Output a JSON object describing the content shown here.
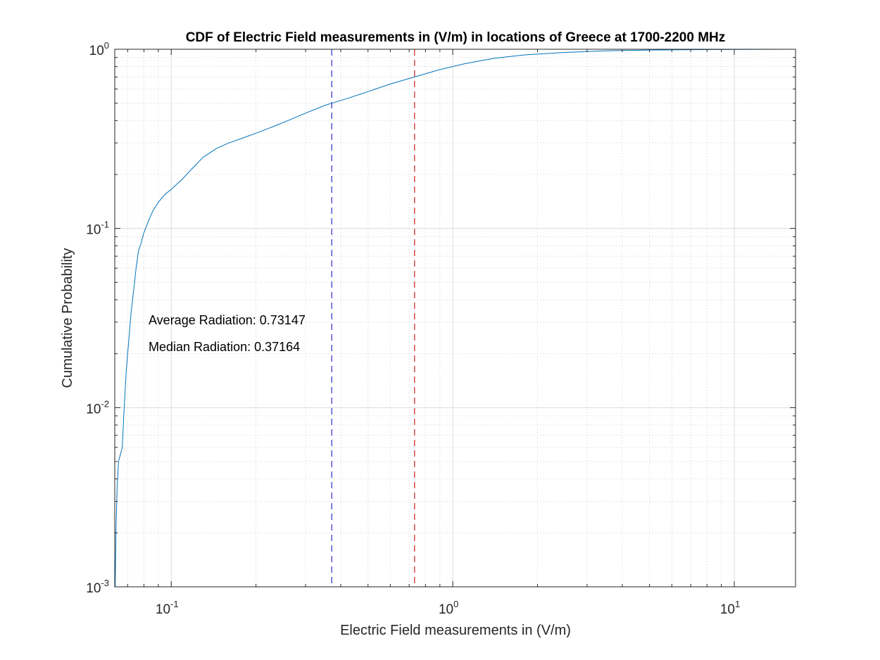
{
  "chart_data": {
    "type": "line",
    "title": "CDF of Electric Field measurements in (V/m) in locations of Greece at 1700-2200 MHz",
    "xlabel": "Electric Field measurements in (V/m)",
    "ylabel": "Cumulative Probability",
    "xscale": "log",
    "yscale": "log",
    "xlim": [
      0.063,
      16.5
    ],
    "ylim": [
      0.001,
      1
    ],
    "grid": true,
    "minor_grid": true,
    "x_ticks": [
      {
        "value": 0.1,
        "base": "10",
        "exp": "-1"
      },
      {
        "value": 1,
        "base": "10",
        "exp": "0"
      },
      {
        "value": 10,
        "base": "10",
        "exp": "1"
      }
    ],
    "y_ticks": [
      {
        "value": 0.001,
        "base": "10",
        "exp": "-3"
      },
      {
        "value": 0.01,
        "base": "10",
        "exp": "-2"
      },
      {
        "value": 0.1,
        "base": "10",
        "exp": "-1"
      },
      {
        "value": 1,
        "base": "10",
        "exp": "0"
      }
    ],
    "series": [
      {
        "color": "#0072bd",
        "x": [
          0.0632,
          0.0637,
          0.0642,
          0.065,
          0.066,
          0.067,
          0.0678,
          0.0685,
          0.0692,
          0.07,
          0.071,
          0.072,
          0.0735,
          0.075,
          0.0765,
          0.078,
          0.08,
          0.083,
          0.086,
          0.09,
          0.095,
          0.1,
          0.11,
          0.12,
          0.13,
          0.145,
          0.16,
          0.18,
          0.2,
          0.23,
          0.26,
          0.3,
          0.35,
          0.3716,
          0.42,
          0.5,
          0.6,
          0.7315,
          0.9,
          1.1,
          1.4,
          1.8,
          2.5,
          3.5,
          5.0,
          7.0,
          10.0,
          16.5
        ],
        "y": [
          0.001,
          0.0022,
          0.0035,
          0.005,
          0.0055,
          0.006,
          0.009,
          0.012,
          0.016,
          0.02,
          0.026,
          0.034,
          0.045,
          0.06,
          0.075,
          0.082,
          0.095,
          0.11,
          0.125,
          0.14,
          0.155,
          0.165,
          0.19,
          0.22,
          0.25,
          0.28,
          0.3,
          0.32,
          0.34,
          0.37,
          0.4,
          0.44,
          0.485,
          0.5,
          0.53,
          0.58,
          0.64,
          0.7,
          0.77,
          0.83,
          0.89,
          0.93,
          0.96,
          0.98,
          0.99,
          0.995,
          0.998,
          1.0
        ]
      }
    ],
    "reference_lines": [
      {
        "x": 0.37164,
        "color": "#3b3bd1",
        "style": "dashed"
      },
      {
        "x": 0.73147,
        "color": "#d12b2b",
        "style": "dashed"
      }
    ],
    "annotations": [
      {
        "text": "Average Radiation: 0.73147"
      },
      {
        "text": "Median Radiation: 0.37164"
      }
    ]
  }
}
